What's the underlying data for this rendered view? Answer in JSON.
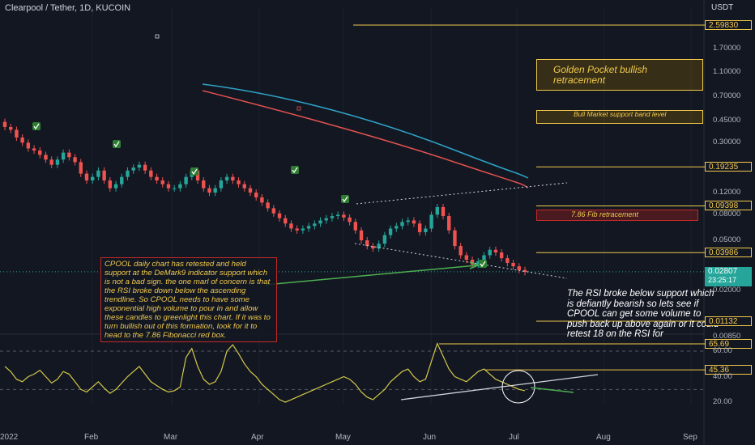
{
  "header": {
    "title": "Clearpool / Tether, 1D, KUCOIN",
    "currency": "USDT"
  },
  "price_axis": {
    "ticks": [
      "1.70000",
      "1.10000",
      "0.70000",
      "0.45000",
      "0.30000",
      "0.12000",
      "0.08000",
      "0.05000",
      "0.02000",
      "0.00850"
    ],
    "level_tags": [
      "2.59830",
      "0.19235",
      "0.09398",
      "0.03986",
      "0.01132"
    ],
    "current_price": "0.02807",
    "countdown": "23:25:17"
  },
  "rsi_axis": {
    "ticks": [
      "60.00",
      "40.00",
      "20.00"
    ],
    "tags": [
      "65.69",
      "45.36"
    ]
  },
  "time_axis": [
    "2022",
    "Feb",
    "Mar",
    "Apr",
    "May",
    "Jun",
    "Jul",
    "Aug",
    "Sep"
  ],
  "annotations": {
    "cpool_note": "CPOOL daily chart has retested and held support at the DeMark9 indicator support which is not a bad sign. the one marl of concern is that the RSI broke down below the ascending trendline. So CPOOL needs to have some exponential high volume to pour in and allow these candles to greenlight this chart. If it was to turn bullish out of this formation, look for it to head to the 7.86 Fibonacci red box.",
    "rsi_note": "The RSI broke below support which is defiantly bearish so lets see if CPOOL can get some volume to push back up above again or it could retest 18 on the RSI for",
    "golden_pocket": "Golden Pocket bullish retracement",
    "bull_market": "Bull Market support band level",
    "fib_box": "7.86 Fib retracement"
  },
  "colors": {
    "up": "#26a69a",
    "down": "#ef5350",
    "level": "#f2c94c",
    "ma_red": "#e0524f",
    "ma_blue": "#2ea4c7",
    "rsi": "#d4c94a"
  },
  "chart_data": {
    "type": "candlestick",
    "symbol": "Clearpool / Tether",
    "interval": "1D",
    "exchange": "KUCOIN",
    "scale": "log",
    "price_levels": [
      2.5983,
      0.19235,
      0.09398,
      0.03986,
      0.01132
    ],
    "close_series": [
      0.4,
      0.38,
      0.33,
      0.3,
      0.27,
      0.26,
      0.24,
      0.22,
      0.2,
      0.22,
      0.25,
      0.23,
      0.21,
      0.17,
      0.15,
      0.16,
      0.18,
      0.15,
      0.13,
      0.14,
      0.16,
      0.18,
      0.19,
      0.2,
      0.18,
      0.16,
      0.15,
      0.14,
      0.13,
      0.13,
      0.14,
      0.16,
      0.18,
      0.15,
      0.13,
      0.12,
      0.13,
      0.15,
      0.16,
      0.15,
      0.14,
      0.13,
      0.12,
      0.11,
      0.1,
      0.09,
      0.082,
      0.075,
      0.068,
      0.062,
      0.06,
      0.062,
      0.065,
      0.068,
      0.072,
      0.075,
      0.078,
      0.08,
      0.076,
      0.07,
      0.06,
      0.05,
      0.045,
      0.043,
      0.047,
      0.055,
      0.062,
      0.065,
      0.07,
      0.072,
      0.068,
      0.058,
      0.062,
      0.08,
      0.092,
      0.078,
      0.06,
      0.045,
      0.038,
      0.035,
      0.032,
      0.034,
      0.038,
      0.042,
      0.04,
      0.036,
      0.033,
      0.031,
      0.029,
      0.028
    ],
    "rsi_series": [
      48,
      44,
      38,
      36,
      40,
      42,
      45,
      40,
      35,
      38,
      44,
      42,
      36,
      30,
      28,
      32,
      36,
      31,
      27,
      30,
      35,
      40,
      44,
      48,
      42,
      36,
      33,
      30,
      28,
      29,
      32,
      55,
      62,
      48,
      38,
      34,
      36,
      44,
      60,
      65,
      58,
      50,
      44,
      40,
      34,
      30,
      26,
      22,
      20,
      22,
      24,
      26,
      28,
      30,
      32,
      34,
      36,
      38,
      40,
      38,
      34,
      28,
      24,
      22,
      26,
      30,
      36,
      40,
      44,
      46,
      40,
      36,
      38,
      52,
      66,
      56,
      46,
      40,
      38,
      36,
      40,
      44,
      46,
      42,
      38,
      36,
      34,
      32,
      30,
      29
    ],
    "rsi_levels": [
      65.69,
      45.36
    ]
  }
}
